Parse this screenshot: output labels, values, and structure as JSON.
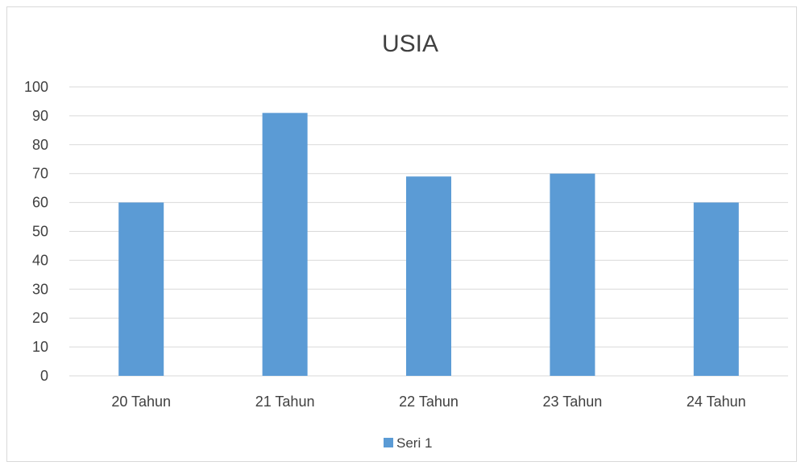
{
  "chart_data": {
    "type": "bar",
    "title": "USIA",
    "categories": [
      "20 Tahun",
      "21 Tahun",
      "22 Tahun",
      "23 Tahun",
      "24 Tahun"
    ],
    "series": [
      {
        "name": "Seri 1",
        "values": [
          60,
          91,
          69,
          70,
          60
        ],
        "color": "#5b9bd5"
      }
    ],
    "ylim": [
      0,
      100
    ],
    "yticks": [
      "0",
      "10",
      "20",
      "30",
      "40",
      "50",
      "60",
      "70",
      "80",
      "90",
      "100"
    ],
    "grid": true,
    "legend_position": "bottom"
  }
}
